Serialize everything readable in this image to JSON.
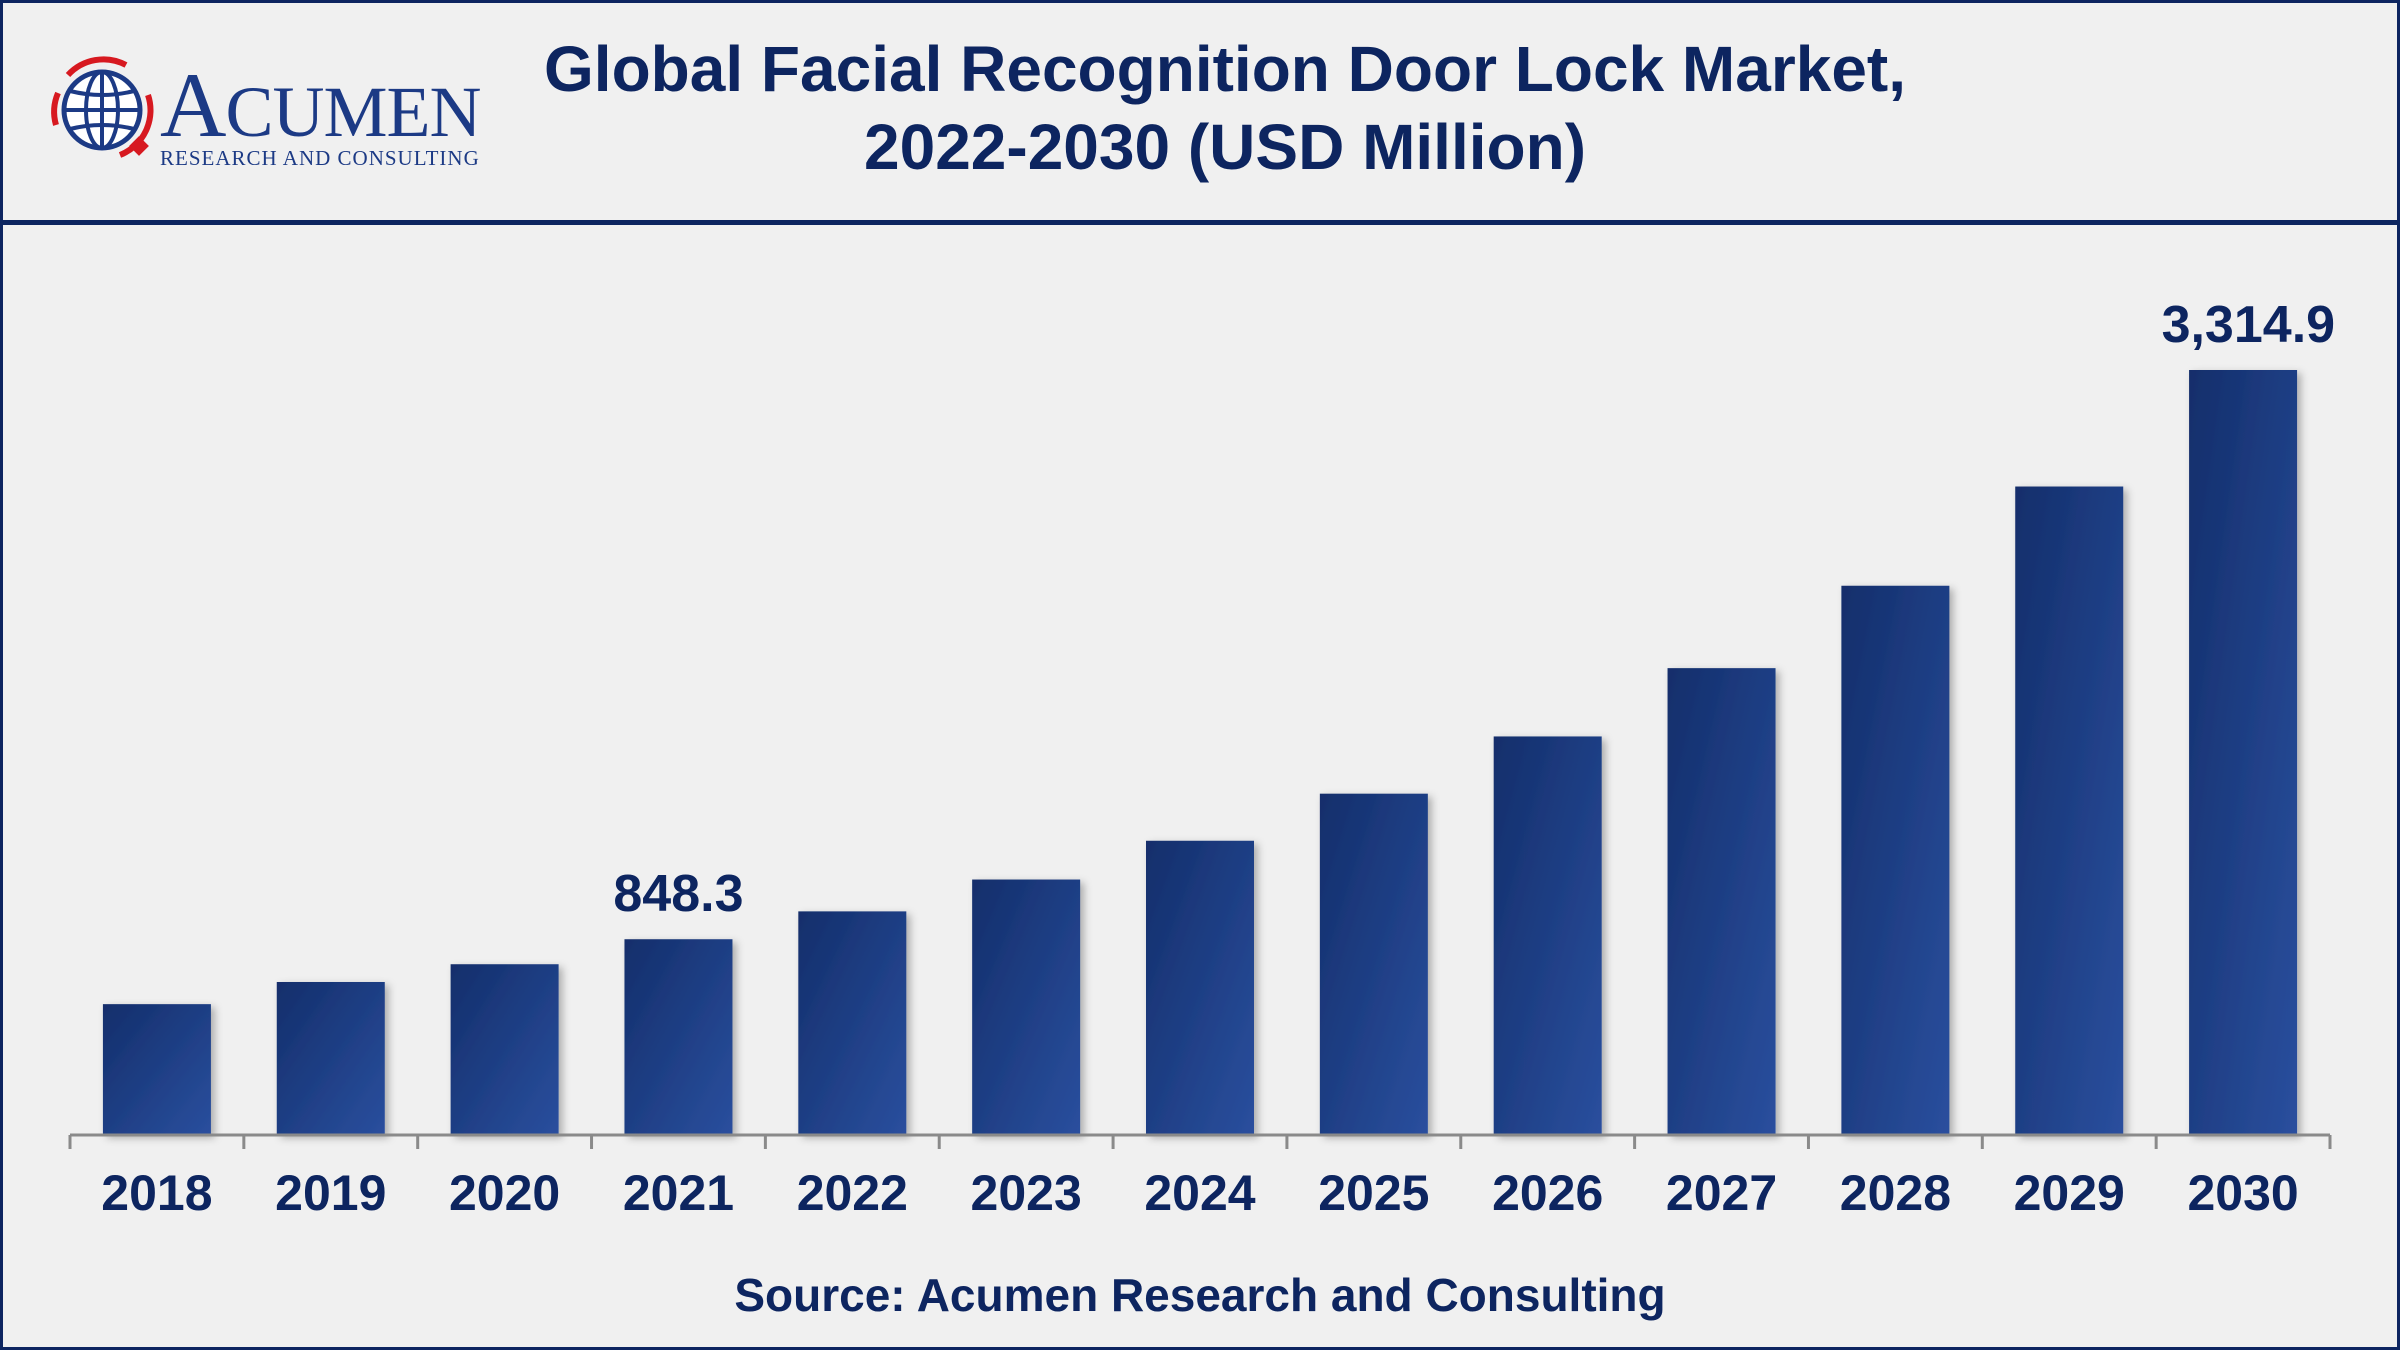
{
  "header": {
    "title_line1": "Global Facial Recognition Door Lock Market,",
    "title_line2": "2022-2030 (USD Million)",
    "logo": {
      "name_first": "A",
      "name_rest": "CUMEN",
      "tagline": "RESEARCH AND CONSULTING"
    }
  },
  "footer": {
    "source": "Source: Acumen Research and Consulting"
  },
  "colors": {
    "bar_dark": "#132e6b",
    "bar_light": "#2a4f9e",
    "text": "#0d2560",
    "border": "#0d2560",
    "background": "#f0f0f0",
    "logo_red": "#d71920"
  },
  "chart_data": {
    "type": "bar",
    "title": "Global Facial Recognition Door Lock Market, 2022-2030 (USD Million)",
    "categories": [
      "2018",
      "2019",
      "2020",
      "2021",
      "2022",
      "2023",
      "2024",
      "2025",
      "2026",
      "2027",
      "2028",
      "2029",
      "2030"
    ],
    "values": [
      567,
      663,
      740,
      848.3,
      969,
      1107,
      1275,
      1479,
      1727,
      2023,
      2380,
      2810,
      3314.9
    ],
    "data_labels": [
      {
        "category": "2021",
        "text": "848.3"
      },
      {
        "category": "2030",
        "text": "3,314.9"
      }
    ],
    "xlabel": "",
    "ylabel": "",
    "ylim": [
      0,
      3500
    ],
    "grid": false,
    "legend": "none"
  }
}
